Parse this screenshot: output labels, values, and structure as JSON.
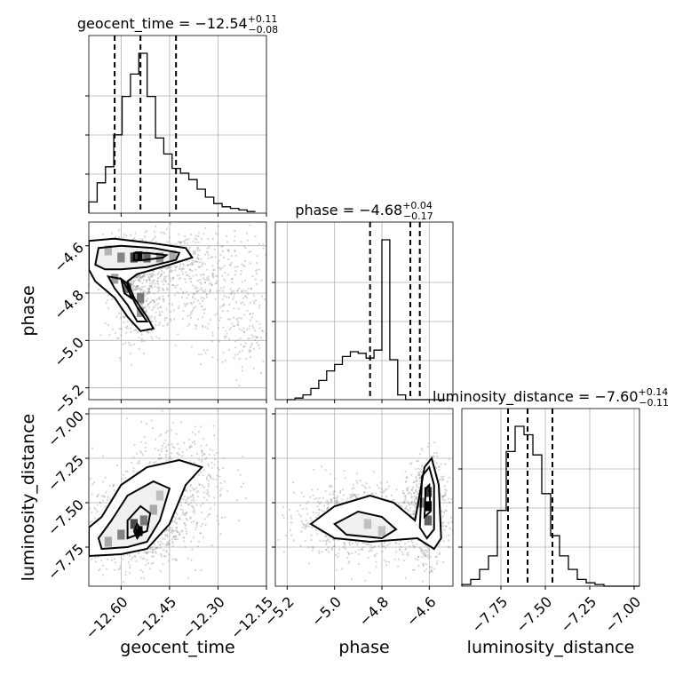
{
  "chart_data": {
    "type": "corner",
    "parameters": [
      "geocent_time",
      "phase",
      "luminosity_distance"
    ],
    "axes": {
      "geocent_time": {
        "label": "geocent_time",
        "range": [
          -12.7,
          -12.15
        ],
        "ticks": [
          -12.6,
          -12.45,
          -12.3,
          -12.15
        ],
        "tick_labels": [
          "−12.60",
          "−12.45",
          "−12.30",
          "−12.15"
        ]
      },
      "phase": {
        "label": "phase",
        "range": [
          -5.25,
          -4.5
        ],
        "ticks": [
          -5.2,
          -5.0,
          -4.8,
          -4.6
        ],
        "tick_labels": [
          "−5.2",
          "−5.0",
          "−4.8",
          "−4.6"
        ]
      },
      "luminosity_distance": {
        "label": "luminosity_distance",
        "range": [
          -7.97,
          -6.97
        ],
        "ticks": [
          -7.75,
          -7.5,
          -7.25,
          -7.0
        ],
        "tick_labels": [
          "−7.75",
          "−7.50",
          "−7.25",
          "−7.00"
        ]
      }
    },
    "marginals": [
      {
        "parameter": "geocent_time",
        "title": {
          "prefix": "geocent_time = ",
          "value": "−12.54",
          "plus": "+0.11",
          "minus": "−0.08"
        },
        "median": -12.54,
        "quantiles": [
          -12.62,
          -12.54,
          -12.43
        ],
        "bin_edges": [
          -12.7,
          -12.6871,
          -12.6742,
          -12.6613,
          -12.6484,
          -12.6355,
          -12.6226,
          -12.6097,
          -12.5968,
          -12.5839,
          -12.571,
          -12.5581,
          -12.5452,
          -12.5323,
          -12.5194,
          -12.5065,
          -12.4936,
          -12.4807,
          -12.4678,
          -12.4549,
          -12.442,
          -12.4291,
          -12.4162,
          -12.4033,
          -12.3904,
          -12.3775,
          -12.3646,
          -12.3517,
          -12.3388,
          -12.3259,
          -12.313,
          -12.3001,
          -12.2872,
          -12.2743,
          -12.2614,
          -12.2485,
          -12.2356,
          -12.2227,
          -12.2098,
          -12.1969,
          -12.184
        ],
        "counts": [
          0.07,
          0.07,
          0.19,
          0.19,
          0.29,
          0.29,
          0.49,
          0.49,
          0.73,
          0.73,
          0.87,
          0.87,
          1.0,
          1.0,
          0.73,
          0.73,
          0.47,
          0.47,
          0.37,
          0.37,
          0.28,
          0.28,
          0.25,
          0.25,
          0.21,
          0.21,
          0.15,
          0.15,
          0.1,
          0.1,
          0.06,
          0.06,
          0.04,
          0.04,
          0.03,
          0.03,
          0.02,
          0.02,
          0.01,
          0.01
        ]
      },
      {
        "parameter": "phase",
        "title": {
          "prefix": "phase = ",
          "value": "−4.68",
          "plus": "+0.04",
          "minus": "−0.17"
        },
        "median": -4.68,
        "quantiles": [
          -4.85,
          -4.68,
          -4.64
        ],
        "bin_edges": [
          -5.2,
          -5.1667,
          -5.1333,
          -5.1,
          -5.0667,
          -5.0333,
          -5.0,
          -4.9667,
          -4.9333,
          -4.9,
          -4.8667,
          -4.8333,
          -4.8,
          -4.7667,
          -4.7333,
          -4.7,
          -4.6667,
          -4.6333,
          -4.6,
          -4.5667,
          -4.5333
        ],
        "counts": [
          0.0,
          0.01,
          0.03,
          0.07,
          0.12,
          0.18,
          0.22,
          0.27,
          0.3,
          0.29,
          0.26,
          0.31,
          1.0,
          0.25,
          0.03,
          0.0,
          0.0,
          0.0,
          0.0,
          0.0
        ]
      },
      {
        "parameter": "luminosity_distance",
        "title": {
          "prefix": "luminosity_distance = ",
          "value": "−7.60",
          "plus": "+0.14",
          "minus": "−0.11"
        },
        "median": -7.6,
        "quantiles": [
          -7.71,
          -7.6,
          -7.46
        ],
        "bin_edges": [
          -7.97,
          -7.92,
          -7.87,
          -7.82,
          -7.77,
          -7.72,
          -7.67,
          -7.62,
          -7.57,
          -7.52,
          -7.47,
          -7.42,
          -7.37,
          -7.32,
          -7.27,
          -7.22,
          -7.17,
          -7.12,
          -7.07,
          -7.02,
          -6.97
        ],
        "counts": [
          0.01,
          0.04,
          0.1,
          0.18,
          0.45,
          0.8,
          0.95,
          0.9,
          0.78,
          0.55,
          0.3,
          0.18,
          0.1,
          0.04,
          0.02,
          0.01,
          0.0,
          0.0,
          0.0,
          0.0
        ]
      }
    ],
    "pairs": [
      {
        "x": "geocent_time",
        "y": "phase",
        "contours": [
          [
            [
              -12.7,
              -4.58
            ],
            [
              -12.62,
              -4.57
            ],
            [
              -12.5,
              -4.59
            ],
            [
              -12.4,
              -4.61
            ],
            [
              -12.38,
              -4.65
            ],
            [
              -12.45,
              -4.68
            ],
            [
              -12.55,
              -4.72
            ],
            [
              -12.58,
              -4.75
            ],
            [
              -12.56,
              -4.82
            ],
            [
              -12.52,
              -4.9
            ],
            [
              -12.5,
              -4.95
            ],
            [
              -12.54,
              -4.96
            ],
            [
              -12.58,
              -4.9
            ],
            [
              -12.62,
              -4.82
            ],
            [
              -12.68,
              -4.75
            ],
            [
              -12.7,
              -4.7
            ],
            [
              -12.7,
              -4.58
            ]
          ],
          [
            [
              -12.67,
              -4.61
            ],
            [
              -12.6,
              -4.6
            ],
            [
              -12.5,
              -4.61
            ],
            [
              -12.42,
              -4.63
            ],
            [
              -12.43,
              -4.66
            ],
            [
              -12.52,
              -4.69
            ],
            [
              -12.6,
              -4.7
            ],
            [
              -12.65,
              -4.7
            ],
            [
              -12.68,
              -4.68
            ],
            [
              -12.67,
              -4.61
            ]
          ],
          [
            [
              -12.56,
              -4.63
            ],
            [
              -12.52,
              -4.63
            ],
            [
              -12.46,
              -4.64
            ],
            [
              -12.47,
              -4.65
            ],
            [
              -12.53,
              -4.66
            ],
            [
              -12.56,
              -4.66
            ],
            [
              -12.56,
              -4.63
            ]
          ],
          [
            [
              -12.64,
              -4.73
            ],
            [
              -12.6,
              -4.74
            ],
            [
              -12.58,
              -4.78
            ],
            [
              -12.55,
              -4.86
            ],
            [
              -12.52,
              -4.92
            ],
            [
              -12.55,
              -4.92
            ],
            [
              -12.58,
              -4.85
            ],
            [
              -12.62,
              -4.78
            ],
            [
              -12.64,
              -4.73
            ]
          ],
          [
            [
              -12.6,
              -4.74
            ],
            [
              -12.58,
              -4.76
            ],
            [
              -12.57,
              -4.82
            ],
            [
              -12.59,
              -4.8
            ],
            [
              -12.6,
              -4.74
            ]
          ]
        ],
        "density_cells": [
          {
            "x": -12.545,
            "y": -4.645,
            "level": 1.0
          },
          {
            "x": -12.56,
            "y": -4.65,
            "level": 0.75
          },
          {
            "x": -12.52,
            "y": -4.65,
            "level": 0.6
          },
          {
            "x": -12.6,
            "y": -4.65,
            "level": 0.45
          },
          {
            "x": -12.48,
            "y": -4.65,
            "level": 0.4
          },
          {
            "x": -12.54,
            "y": -4.82,
            "level": 0.5
          },
          {
            "x": -12.58,
            "y": -4.78,
            "level": 0.55
          },
          {
            "x": -12.54,
            "y": -4.88,
            "level": 0.35
          },
          {
            "x": -12.62,
            "y": -4.74,
            "level": 0.35
          },
          {
            "x": -12.44,
            "y": -4.64,
            "level": 0.3
          },
          {
            "x": -12.64,
            "y": -4.62,
            "level": 0.25
          }
        ],
        "scatter_clusters": [
          {
            "cx": -12.55,
            "cy": -4.66,
            "sx": 0.09,
            "sy": 0.05,
            "n": 700
          },
          {
            "cx": -12.55,
            "cy": -4.82,
            "sx": 0.04,
            "sy": 0.09,
            "n": 450
          },
          {
            "cx": -12.35,
            "cy": -4.75,
            "sx": 0.09,
            "sy": 0.13,
            "n": 400
          },
          {
            "cx": -12.22,
            "cy": -4.95,
            "sx": 0.04,
            "sy": 0.1,
            "n": 120
          }
        ]
      },
      {
        "x": "geocent_time",
        "y": "luminosity_distance",
        "contours": [
          [
            [
              -12.7,
              -7.8
            ],
            [
              -12.6,
              -7.79
            ],
            [
              -12.52,
              -7.76
            ],
            [
              -12.45,
              -7.62
            ],
            [
              -12.4,
              -7.4
            ],
            [
              -12.35,
              -7.3
            ],
            [
              -12.42,
              -7.26
            ],
            [
              -12.52,
              -7.3
            ],
            [
              -12.6,
              -7.4
            ],
            [
              -12.66,
              -7.58
            ],
            [
              -12.7,
              -7.64
            ],
            [
              -12.7,
              -7.8
            ]
          ],
          [
            [
              -12.66,
              -7.76
            ],
            [
              -12.58,
              -7.75
            ],
            [
              -12.52,
              -7.72
            ],
            [
              -12.48,
              -7.6
            ],
            [
              -12.45,
              -7.42
            ],
            [
              -12.5,
              -7.38
            ],
            [
              -12.58,
              -7.46
            ],
            [
              -12.63,
              -7.6
            ],
            [
              -12.67,
              -7.7
            ],
            [
              -12.66,
              -7.76
            ]
          ],
          [
            [
              -12.58,
              -7.7
            ],
            [
              -12.52,
              -7.66
            ],
            [
              -12.51,
              -7.56
            ],
            [
              -12.54,
              -7.52
            ],
            [
              -12.58,
              -7.6
            ],
            [
              -12.58,
              -7.7
            ]
          ],
          [
            [
              -12.55,
              -7.7
            ],
            [
              -12.535,
              -7.66
            ],
            [
              -12.55,
              -7.62
            ],
            [
              -12.56,
              -7.66
            ],
            [
              -12.55,
              -7.7
            ]
          ]
        ],
        "density_cells": [
          {
            "x": -12.545,
            "y": -7.66,
            "level": 1.0
          },
          {
            "x": -12.56,
            "y": -7.62,
            "level": 0.7
          },
          {
            "x": -12.53,
            "y": -7.6,
            "level": 0.5
          },
          {
            "x": -12.6,
            "y": -7.68,
            "level": 0.45
          },
          {
            "x": -12.64,
            "y": -7.72,
            "level": 0.3
          },
          {
            "x": -12.5,
            "y": -7.54,
            "level": 0.3
          },
          {
            "x": -12.48,
            "y": -7.46,
            "level": 0.2
          }
        ],
        "scatter_clusters": [
          {
            "cx": -12.55,
            "cy": -7.62,
            "sx": 0.07,
            "sy": 0.12,
            "n": 900
          },
          {
            "cx": -12.42,
            "cy": -7.38,
            "sx": 0.08,
            "sy": 0.16,
            "n": 450
          }
        ]
      },
      {
        "x": "phase",
        "y": "luminosity_distance",
        "contours": [
          [
            [
              -5.1,
              -7.62
            ],
            [
              -5.0,
              -7.52
            ],
            [
              -4.85,
              -7.46
            ],
            [
              -4.75,
              -7.5
            ],
            [
              -4.66,
              -7.6
            ],
            [
              -4.62,
              -7.3
            ],
            [
              -4.59,
              -7.25
            ],
            [
              -4.56,
              -7.4
            ],
            [
              -4.55,
              -7.7
            ],
            [
              -4.58,
              -7.76
            ],
            [
              -4.65,
              -7.7
            ],
            [
              -4.85,
              -7.72
            ],
            [
              -5.0,
              -7.7
            ],
            [
              -5.1,
              -7.62
            ]
          ],
          [
            [
              -5.0,
              -7.62
            ],
            [
              -4.9,
              -7.55
            ],
            [
              -4.8,
              -7.58
            ],
            [
              -4.74,
              -7.65
            ],
            [
              -4.8,
              -7.7
            ],
            [
              -4.95,
              -7.68
            ],
            [
              -5.0,
              -7.62
            ]
          ],
          [
            [
              -4.64,
              -7.64
            ],
            [
              -4.63,
              -7.35
            ],
            [
              -4.6,
              -7.3
            ],
            [
              -4.58,
              -7.4
            ],
            [
              -4.58,
              -7.65
            ],
            [
              -4.61,
              -7.7
            ],
            [
              -4.64,
              -7.64
            ]
          ],
          [
            [
              -4.62,
              -7.58
            ],
            [
              -4.615,
              -7.42
            ],
            [
              -4.6,
              -7.4
            ],
            [
              -4.595,
              -7.55
            ],
            [
              -4.62,
              -7.58
            ]
          ]
        ],
        "density_cells": [
          {
            "x": -4.605,
            "y": -7.52,
            "level": 1.0
          },
          {
            "x": -4.605,
            "y": -7.44,
            "level": 0.75
          },
          {
            "x": -4.605,
            "y": -7.6,
            "level": 0.6
          },
          {
            "x": -4.63,
            "y": -7.5,
            "level": 0.45
          },
          {
            "x": -4.86,
            "y": -7.62,
            "level": 0.2
          },
          {
            "x": -4.8,
            "y": -7.66,
            "level": 0.2
          }
        ],
        "scatter_clusters": [
          {
            "cx": -4.61,
            "cy": -7.55,
            "sx": 0.04,
            "sy": 0.14,
            "n": 700
          },
          {
            "cx": -4.88,
            "cy": -7.6,
            "sx": 0.14,
            "sy": 0.1,
            "n": 900
          }
        ]
      }
    ]
  }
}
